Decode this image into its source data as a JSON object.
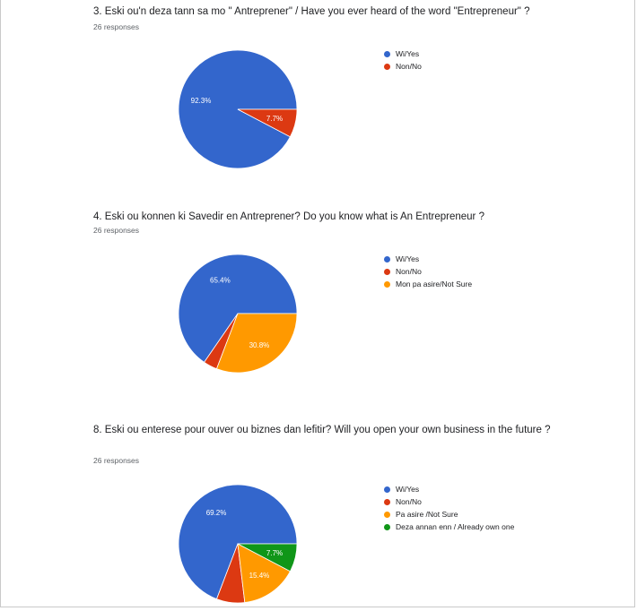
{
  "colors": {
    "blue": "#3366cc",
    "red": "#dc3912",
    "orange": "#ff9900",
    "green": "#109618"
  },
  "chart_data": [
    {
      "type": "pie",
      "title": "3. Eski ou'n deza tann sa mo \" Antreprener\" / Have   you ever heard of the word \"Entrepreneur\" ?",
      "subtitle": "26 responses",
      "categories": [
        "Wi/Yes",
        "Non/No"
      ],
      "values": [
        92.3,
        7.7
      ],
      "labels": [
        "92.3%",
        "7.7%"
      ],
      "colors": [
        "#3366cc",
        "#dc3912"
      ],
      "legend": "right"
    },
    {
      "type": "pie",
      "title": "4. Eski ou konnen ki Savedir en Antreprener? Do you know what is An Entrepreneur ?",
      "subtitle": "26 responses",
      "categories": [
        "Wi/Yes",
        "Non/No",
        "Mon pa asire/Not Sure"
      ],
      "values": [
        65.4,
        3.8,
        30.8
      ],
      "labels": [
        "65.4%",
        "",
        "30.8%"
      ],
      "colors": [
        "#3366cc",
        "#dc3912",
        "#ff9900"
      ],
      "legend": "right"
    },
    {
      "type": "pie",
      "title": "8. Eski ou enterese pour ouver ou biznes dan lefitir? Will you open your own business in the future ?",
      "subtitle": "26 responses",
      "categories": [
        "Wi/Yes",
        "Non/No",
        "Pa asire /Not Sure",
        "Deza annan enn / Already own one"
      ],
      "values": [
        69.2,
        7.7,
        15.4,
        7.7
      ],
      "labels": [
        "69.2%",
        "",
        "15.4%",
        "7.7%"
      ],
      "colors": [
        "#3366cc",
        "#dc3912",
        "#ff9900",
        "#109618"
      ],
      "legend": "right"
    }
  ]
}
